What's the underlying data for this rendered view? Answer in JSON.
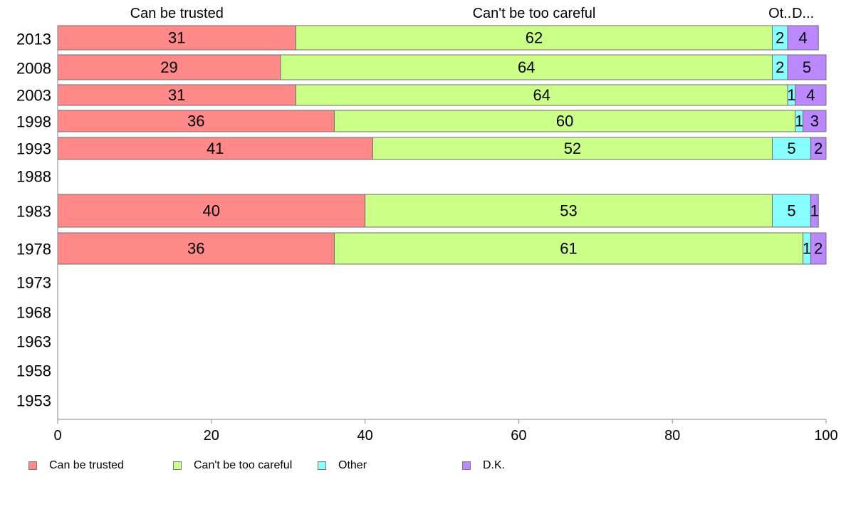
{
  "chart_data": {
    "type": "bar",
    "orientation": "horizontal",
    "stacked": true,
    "categories": [
      "2013",
      "2008",
      "2003",
      "1998",
      "1993",
      "1988",
      "1983",
      "1978",
      "1973",
      "1968",
      "1963",
      "1958",
      "1953"
    ],
    "series": [
      {
        "name": "Can be trusted",
        "color": "#ff8888",
        "values": [
          31,
          29,
          31,
          36,
          41,
          null,
          40,
          36,
          null,
          null,
          null,
          null,
          null
        ]
      },
      {
        "name": "Can't be too careful",
        "color": "#ccff88",
        "values": [
          62,
          64,
          64,
          60,
          52,
          null,
          53,
          61,
          null,
          null,
          null,
          null,
          null
        ]
      },
      {
        "name": "Other",
        "color": "#88ffff",
        "values": [
          2,
          2,
          1,
          1,
          5,
          null,
          5,
          1,
          null,
          null,
          null,
          null,
          null
        ]
      },
      {
        "name": "D.K.",
        "color": "#bb88ff",
        "values": [
          4,
          5,
          4,
          3,
          2,
          null,
          1,
          2,
          null,
          null,
          null,
          null,
          null
        ]
      }
    ],
    "column_headers": [
      "Can be trusted",
      "Can't be too careful",
      "Ot..",
      "D..."
    ],
    "xlim": [
      0,
      100
    ],
    "x_ticks": [
      0,
      20,
      40,
      60,
      80,
      100
    ],
    "grid": false,
    "legend_position": "bottom-left"
  }
}
